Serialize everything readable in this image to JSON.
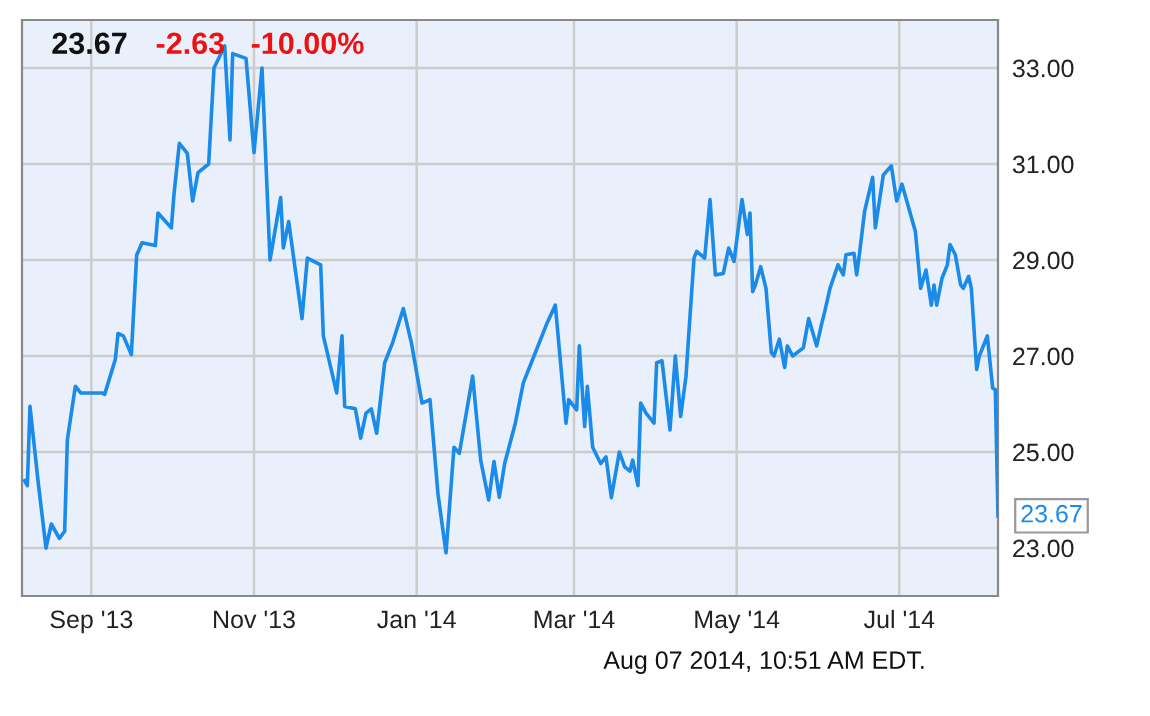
{
  "chart_data": {
    "type": "line",
    "title": "23.67",
    "subtitle": "-2.63   -10.00%",
    "x": [
      "2013-08-07",
      "2013-08-08",
      "2013-08-09",
      "2013-08-12",
      "2013-08-15",
      "2013-08-17",
      "2013-08-20",
      "2013-08-22",
      "2013-08-23",
      "2013-08-26",
      "2013-08-28",
      "2013-09-05",
      "2013-09-06",
      "2013-09-10",
      "2013-09-11",
      "2013-09-13",
      "2013-09-16",
      "2013-09-18",
      "2013-09-20",
      "2013-09-25",
      "2013-09-26",
      "2013-10-01",
      "2013-10-02",
      "2013-10-04",
      "2013-10-07",
      "2013-10-09",
      "2013-10-11",
      "2013-10-15",
      "2013-10-17",
      "2013-10-21",
      "2013-10-23",
      "2013-10-24",
      "2013-10-29",
      "2013-11-01",
      "2013-11-04",
      "2013-11-07",
      "2013-11-11",
      "2013-11-12",
      "2013-11-14",
      "2013-11-19",
      "2013-11-21",
      "2013-11-26",
      "2013-11-27",
      "2013-12-02",
      "2013-12-04",
      "2013-12-05",
      "2013-12-09",
      "2013-12-11",
      "2013-12-13",
      "2013-12-15",
      "2013-12-17",
      "2013-12-20",
      "2013-12-23",
      "2013-12-27",
      "2013-12-30",
      "2014-01-03",
      "2014-01-06",
      "2014-01-09",
      "2014-01-12",
      "2014-01-15",
      "2014-01-17",
      "2014-01-22",
      "2014-01-25",
      "2014-01-28",
      "2014-01-30",
      "2014-02-01",
      "2014-02-03",
      "2014-02-07",
      "2014-02-10",
      "2014-02-13",
      "2014-02-19",
      "2014-02-22",
      "2014-02-26",
      "2014-02-27",
      "2014-03-02",
      "2014-03-03",
      "2014-03-05",
      "2014-03-06",
      "2014-03-08",
      "2014-03-11",
      "2014-03-13",
      "2014-03-15",
      "2014-03-18",
      "2014-03-20",
      "2014-03-22",
      "2014-03-23",
      "2014-03-25",
      "2014-03-26",
      "2014-03-28",
      "2014-03-31",
      "2014-04-01",
      "2014-04-03",
      "2014-04-06",
      "2014-04-08",
      "2014-04-10",
      "2014-04-12",
      "2014-04-13",
      "2014-04-15",
      "2014-04-16",
      "2014-04-19",
      "2014-04-21",
      "2014-04-23",
      "2014-04-26",
      "2014-04-28",
      "2014-04-30",
      "2014-05-03",
      "2014-05-05",
      "2014-05-06",
      "2014-05-07",
      "2014-05-08",
      "2014-05-10",
      "2014-05-12",
      "2014-05-14",
      "2014-05-15",
      "2014-05-17",
      "2014-05-19",
      "2014-05-20",
      "2014-05-22",
      "2014-05-26",
      "2014-05-28",
      "2014-05-31",
      "2014-06-02",
      "2014-06-03",
      "2014-06-05",
      "2014-06-08",
      "2014-06-10",
      "2014-06-11",
      "2014-06-14",
      "2014-06-15",
      "2014-06-16",
      "2014-06-18",
      "2014-06-21",
      "2014-06-22",
      "2014-06-25",
      "2014-06-28",
      "2014-06-30",
      "2014-07-02",
      "2014-07-07",
      "2014-07-09",
      "2014-07-11",
      "2014-07-13",
      "2014-07-14",
      "2014-07-15",
      "2014-07-17",
      "2014-07-19",
      "2014-07-20",
      "2014-07-22",
      "2014-07-24",
      "2014-07-25",
      "2014-07-27",
      "2014-07-28",
      "2014-07-30",
      "2014-07-31",
      "2014-08-03",
      "2014-08-05",
      "2014-08-06",
      "2014-08-07"
    ],
    "series": [
      {
        "color": "#1a8be8",
        "values": [
          24.4,
          24.3,
          25.95,
          24.4,
          23.0,
          23.5,
          23.2,
          23.35,
          25.25,
          26.37,
          26.23,
          26.23,
          26.2,
          26.93,
          27.47,
          27.42,
          27.03,
          29.1,
          29.36,
          29.3,
          29.98,
          29.67,
          30.37,
          31.43,
          31.22,
          30.23,
          30.82,
          31.0,
          33.0,
          33.46,
          31.5,
          33.3,
          33.2,
          31.24,
          33.0,
          29.0,
          30.3,
          29.25,
          29.8,
          27.78,
          29.04,
          28.9,
          27.42,
          26.23,
          27.42,
          25.95,
          25.9,
          25.29,
          25.81,
          25.9,
          25.39,
          26.86,
          27.28,
          27.99,
          27.28,
          26.02,
          26.09,
          24.12,
          22.9,
          25.1,
          24.97,
          26.58,
          24.83,
          24.0,
          24.8,
          24.06,
          24.76,
          25.6,
          26.44,
          26.86,
          27.7,
          28.06,
          25.6,
          26.09,
          25.88,
          27.21,
          25.53,
          26.37,
          25.1,
          24.76,
          24.9,
          24.05,
          25.0,
          24.69,
          24.6,
          24.83,
          24.3,
          26.02,
          25.81,
          25.6,
          26.86,
          26.9,
          25.46,
          27.0,
          25.74,
          26.58,
          27.42,
          29.04,
          29.18,
          29.04,
          30.26,
          28.69,
          28.72,
          29.25,
          28.97,
          30.26,
          29.53,
          29.98,
          28.34,
          28.48,
          28.86,
          28.41,
          27.07,
          27.0,
          27.35,
          26.76,
          27.21,
          27.0,
          27.17,
          27.78,
          27.21,
          27.7,
          27.92,
          28.41,
          28.9,
          28.69,
          29.11,
          29.14,
          28.69,
          29.11,
          30.02,
          30.72,
          29.67,
          30.77,
          30.96,
          30.23,
          30.58,
          29.6,
          28.41,
          28.79,
          28.06,
          28.48,
          28.06,
          28.62,
          28.9,
          29.32,
          29.11,
          28.48,
          28.41,
          28.66,
          28.41,
          26.72,
          27.0,
          27.42,
          26.33,
          26.3,
          23.67
        ]
      }
    ],
    "xlim": [
      "2013-08-06",
      "2014-08-07"
    ],
    "xticks": [
      {
        "value": "2013-09-01",
        "label": "Sep '13"
      },
      {
        "value": "2013-11-01",
        "label": "Nov '13"
      },
      {
        "value": "2014-01-01",
        "label": "Jan '14"
      },
      {
        "value": "2014-03-01",
        "label": "Mar '14"
      },
      {
        "value": "2014-05-01",
        "label": "May '14"
      },
      {
        "value": "2014-07-01",
        "label": "Jul '14"
      }
    ],
    "ylim": [
      22,
      34
    ],
    "yticks": [
      {
        "value": 23,
        "label": "23.00"
      },
      {
        "value": 25,
        "label": "25.00"
      },
      {
        "value": 27,
        "label": "27.00"
      },
      {
        "value": 29,
        "label": "29.00"
      },
      {
        "value": 31,
        "label": "31.00"
      },
      {
        "value": 33,
        "label": "33.00"
      }
    ],
    "grid": true,
    "annotations": [
      {
        "text": "23.67",
        "x": "2014-08-07",
        "y": 23.67
      },
      "Aug 07 2014, 10:51 AM EDT."
    ]
  }
}
